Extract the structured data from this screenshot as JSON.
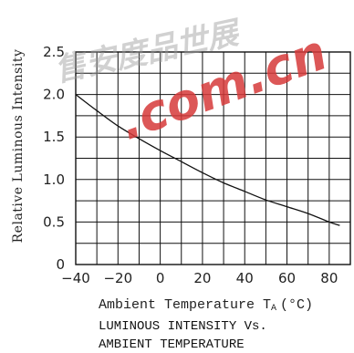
{
  "watermark": {
    "latin": ".com.cn",
    "cjk": "售安度品世展"
  },
  "chart_data": {
    "type": "line",
    "title": "LUMINOUS INTENSITY Vs.",
    "subtitle": "AMBIENT TEMPERATURE",
    "xlabel": "Ambient Temperature T",
    "xlabel_sub": "A",
    "xlabel_unit": "(°C)",
    "ylabel": "Relative Luminous Intensity",
    "xlim": [
      -40,
      90
    ],
    "ylim": [
      0,
      2.5
    ],
    "x_ticks": [
      -40,
      -20,
      0,
      20,
      40,
      60,
      80
    ],
    "x_tick_labels": [
      "−40",
      "−20",
      "0",
      "20",
      "40",
      "60",
      "80"
    ],
    "y_ticks": [
      0,
      0.5,
      1.0,
      1.5,
      2.0,
      2.5
    ],
    "y_tick_labels": [
      "0",
      "0.5",
      "1.0",
      "1.5",
      "2.0",
      "2.5"
    ],
    "x_grid_step": 10,
    "y_grid_step": 0.25,
    "grid": true,
    "series": [
      {
        "x": [
          -40,
          -30,
          -20,
          -10,
          0,
          10,
          20,
          30,
          40,
          50,
          60,
          70,
          80,
          85
        ],
        "y": [
          2.0,
          1.81,
          1.63,
          1.48,
          1.34,
          1.21,
          1.08,
          0.96,
          0.86,
          0.76,
          0.68,
          0.6,
          0.5,
          0.46
        ]
      }
    ]
  }
}
